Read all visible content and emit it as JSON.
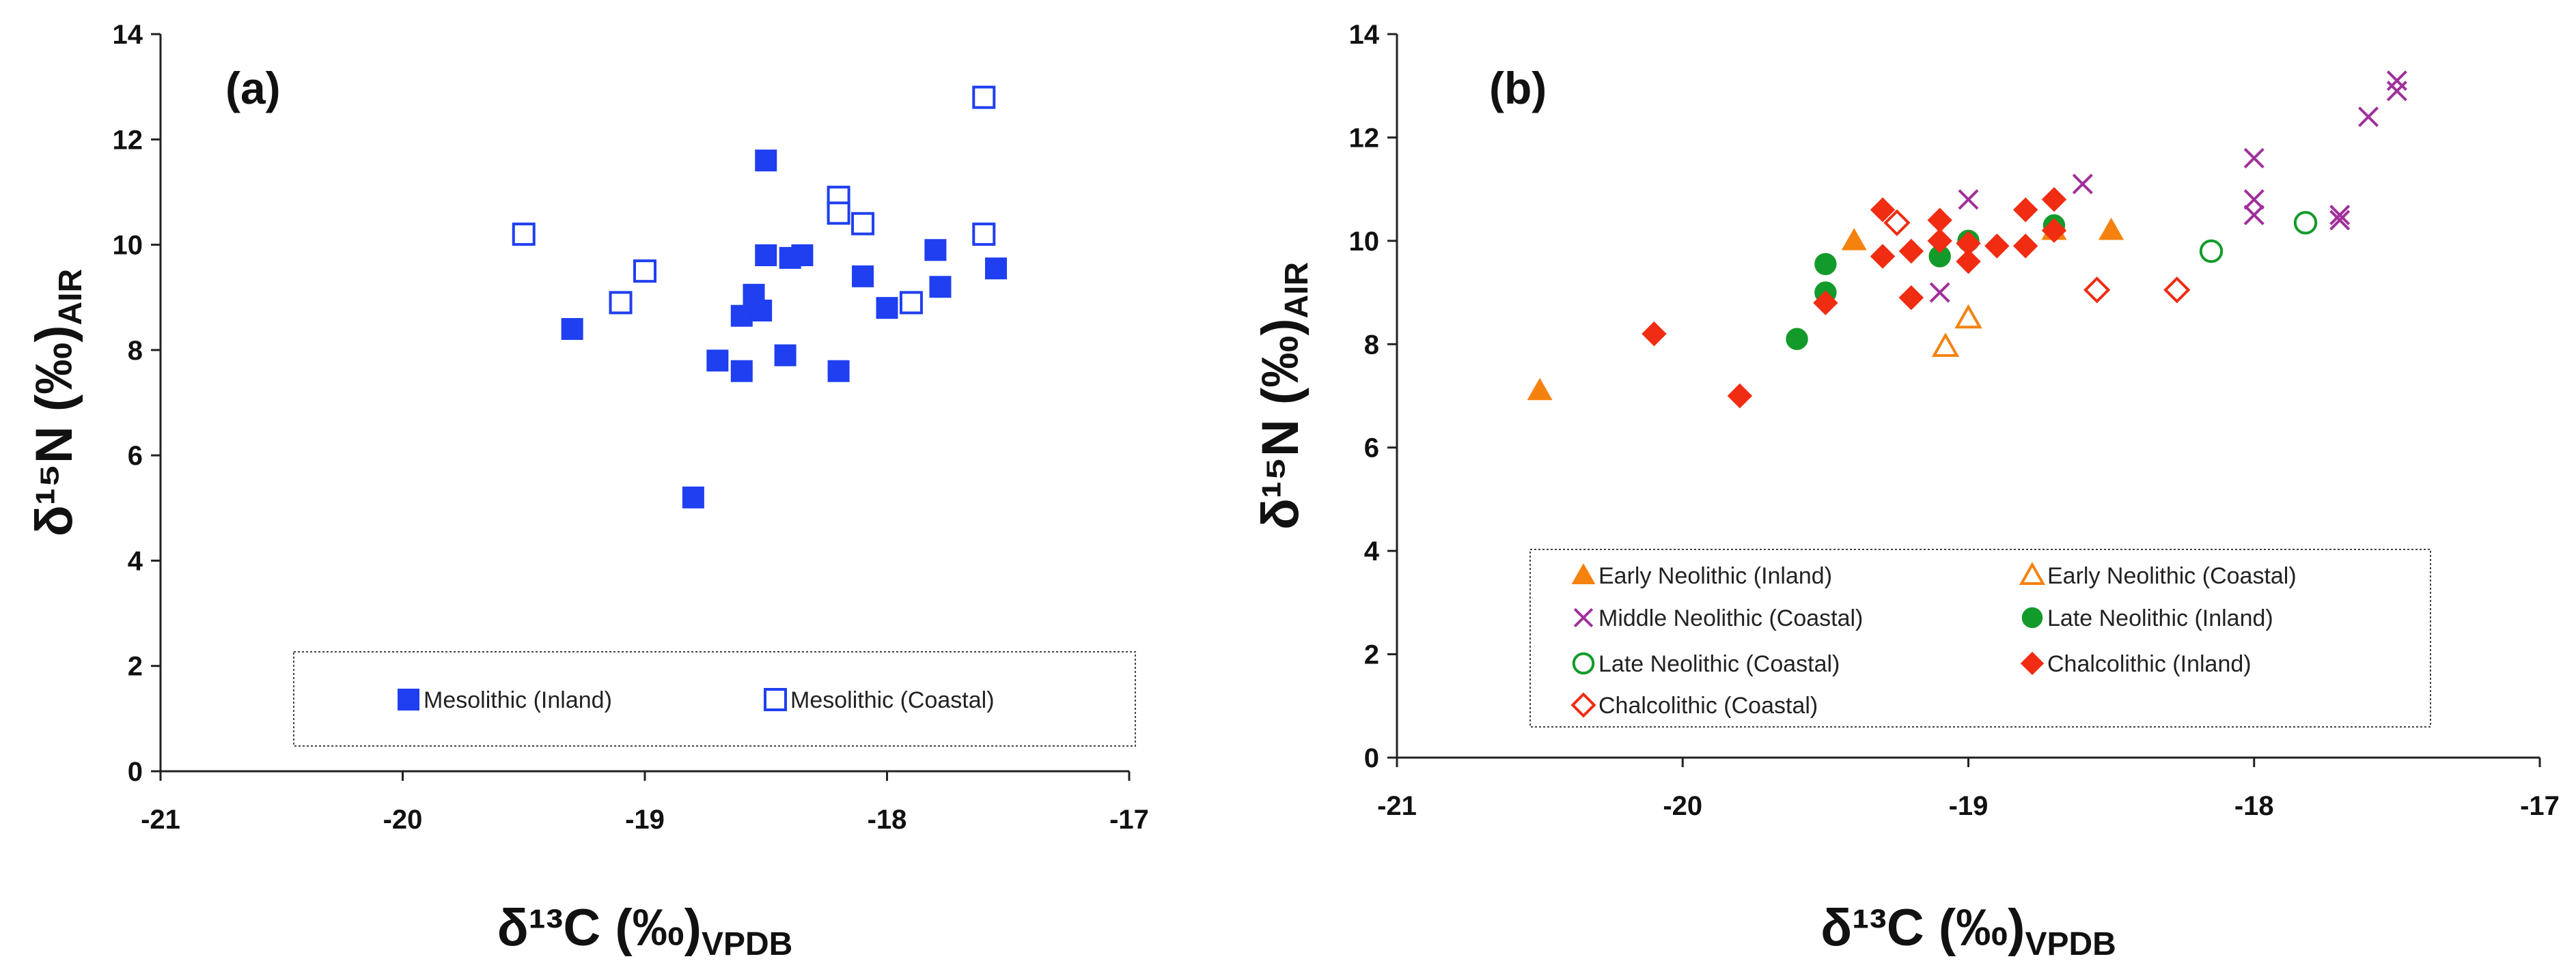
{
  "colors": {
    "meso_blue": "#1F3FF0",
    "orange": "#F5820F",
    "purple": "#A0309A",
    "green": "#129B2A",
    "red": "#F02C12",
    "axis": "#222222"
  },
  "chart_data": [
    {
      "type": "scatter",
      "panel": "(a)",
      "xlabel": {
        "main": "δ¹³C (‰)",
        "sub": "VPDB"
      },
      "ylabel": {
        "main": "δ¹⁵N (‰)",
        "sub": "AIR"
      },
      "xlim": [
        -21,
        -17
      ],
      "ylim": [
        0,
        14
      ],
      "x_ticks": [
        -21,
        -20,
        -19,
        -18,
        -17
      ],
      "y_ticks": [
        0,
        2,
        4,
        6,
        8,
        10,
        12,
        14
      ],
      "legend_position": "bottom",
      "grid": false,
      "series": [
        {
          "name": "Mesolithic (Inland)",
          "marker": "square",
          "filled": true,
          "color": "#1F3FF0",
          "points": [
            [
              -19.3,
              8.4
            ],
            [
              -18.8,
              5.2
            ],
            [
              -18.7,
              7.8
            ],
            [
              -18.6,
              7.6
            ],
            [
              -18.6,
              8.65
            ],
            [
              -18.55,
              9.05
            ],
            [
              -18.52,
              8.75
            ],
            [
              -18.5,
              11.6
            ],
            [
              -18.5,
              9.8
            ],
            [
              -18.42,
              7.9
            ],
            [
              -18.4,
              9.75
            ],
            [
              -18.35,
              9.8
            ],
            [
              -18.2,
              7.6
            ],
            [
              -18.1,
              9.4
            ],
            [
              -18.0,
              8.8
            ],
            [
              -17.8,
              9.9
            ],
            [
              -17.78,
              9.2
            ],
            [
              -17.55,
              9.55
            ]
          ]
        },
        {
          "name": "Mesolithic (Coastal)",
          "marker": "square",
          "filled": false,
          "color": "#1F3FF0",
          "points": [
            [
              -19.5,
              10.2
            ],
            [
              -19.1,
              8.9
            ],
            [
              -19.0,
              9.5
            ],
            [
              -18.2,
              10.9
            ],
            [
              -18.2,
              10.6
            ],
            [
              -18.1,
              10.4
            ],
            [
              -17.9,
              8.9
            ],
            [
              -17.6,
              10.2
            ],
            [
              -17.6,
              12.8
            ]
          ]
        }
      ]
    },
    {
      "type": "scatter",
      "panel": "(b)",
      "xlabel": {
        "main": "δ¹³C (‰)",
        "sub": "VPDB"
      },
      "ylabel": {
        "main": "δ¹⁵N (‰)",
        "sub": "AIR"
      },
      "xlim": [
        -21,
        -17
      ],
      "ylim": [
        0,
        14
      ],
      "x_ticks": [
        -21,
        -20,
        -19,
        -18,
        -17
      ],
      "y_ticks": [
        0,
        2,
        4,
        6,
        8,
        10,
        12,
        14
      ],
      "legend_position": "bottom-left",
      "grid": false,
      "series": [
        {
          "name": "Early Neolithic (Inland)",
          "marker": "triangle",
          "filled": true,
          "color": "#F5820F",
          "points": [
            [
              -20.5,
              7.1
            ],
            [
              -19.4,
              10.0
            ],
            [
              -18.7,
              10.2
            ],
            [
              -18.5,
              10.2
            ]
          ]
        },
        {
          "name": "Early Neolithic (Coastal)",
          "marker": "triangle",
          "filled": false,
          "color": "#F5820F",
          "points": [
            [
              -19.08,
              7.95
            ],
            [
              -19.0,
              8.5
            ]
          ]
        },
        {
          "name": "Middle Neolithic (Coastal)",
          "marker": "x",
          "filled": false,
          "color": "#A0309A",
          "points": [
            [
              -19.1,
              9.0
            ],
            [
              -19.0,
              10.8
            ],
            [
              -18.6,
              11.1
            ],
            [
              -18.0,
              11.6
            ],
            [
              -18.0,
              10.8
            ],
            [
              -18.0,
              10.5
            ],
            [
              -17.7,
              10.5
            ],
            [
              -17.7,
              10.4
            ],
            [
              -17.6,
              12.4
            ],
            [
              -17.5,
              13.1
            ],
            [
              -17.5,
              12.9
            ]
          ]
        },
        {
          "name": "Late Neolithic (Inland)",
          "marker": "circle",
          "filled": true,
          "color": "#129B2A",
          "points": [
            [
              -19.6,
              8.1
            ],
            [
              -19.5,
              9.55
            ],
            [
              -19.5,
              9.0
            ],
            [
              -19.1,
              9.7
            ],
            [
              -19.0,
              10.0
            ],
            [
              -18.7,
              10.3
            ]
          ]
        },
        {
          "name": "Late Neolithic (Coastal)",
          "marker": "circle",
          "filled": false,
          "color": "#129B2A",
          "points": [
            [
              -18.15,
              9.8
            ],
            [
              -17.82,
              10.35
            ]
          ]
        },
        {
          "name": "Chalcolithic (Inland)",
          "marker": "diamond",
          "filled": true,
          "color": "#F02C12",
          "points": [
            [
              -20.1,
              8.2
            ],
            [
              -19.8,
              7.0
            ],
            [
              -19.5,
              8.8
            ],
            [
              -19.3,
              10.6
            ],
            [
              -19.3,
              9.7
            ],
            [
              -19.2,
              9.8
            ],
            [
              -19.2,
              8.9
            ],
            [
              -19.1,
              10.4
            ],
            [
              -19.1,
              10.0
            ],
            [
              -19.0,
              9.95
            ],
            [
              -19.0,
              9.6
            ],
            [
              -18.9,
              9.9
            ],
            [
              -18.8,
              10.6
            ],
            [
              -18.8,
              9.9
            ],
            [
              -18.7,
              10.8
            ],
            [
              -18.7,
              10.2
            ]
          ]
        },
        {
          "name": "Chalcolithic (Coastal)",
          "marker": "diamond",
          "filled": false,
          "color": "#F02C12",
          "points": [
            [
              -19.25,
              10.35
            ],
            [
              -18.55,
              9.05
            ],
            [
              -18.27,
              9.05
            ]
          ]
        }
      ]
    }
  ]
}
